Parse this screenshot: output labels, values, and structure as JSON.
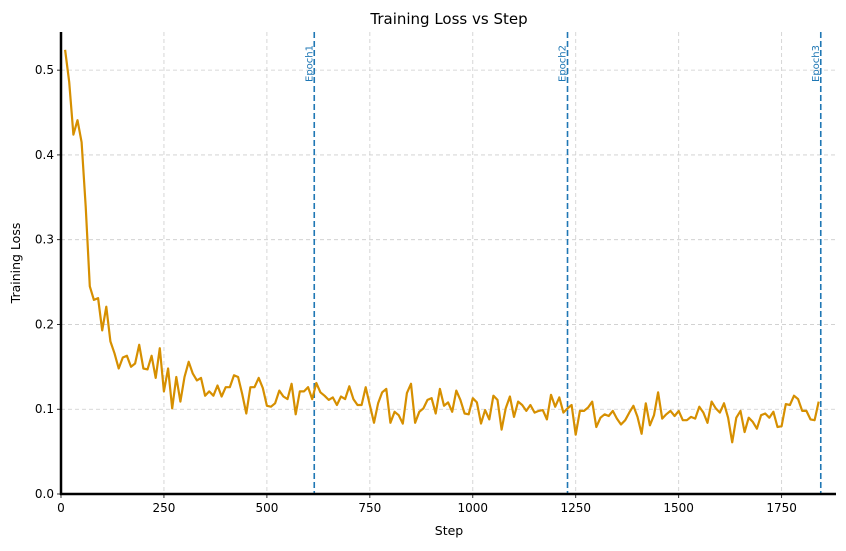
{
  "chart_data": {
    "type": "line",
    "title": "Training Loss vs Step",
    "xlabel": "Step",
    "ylabel": "Training Loss",
    "xlim": [
      0,
      1882
    ],
    "ylim": [
      0,
      0.545
    ],
    "xticks": [
      0,
      250,
      500,
      750,
      1000,
      1250,
      1500,
      1750
    ],
    "yticks": [
      0.0,
      0.1,
      0.2,
      0.3,
      0.4,
      0.5
    ],
    "xtick_labels": [
      "0",
      "250",
      "500",
      "750",
      "1000",
      "1250",
      "1500",
      "1750"
    ],
    "ytick_labels": [
      "0.0",
      "0.1",
      "0.2",
      "0.3",
      "0.4",
      "0.5"
    ],
    "grid": true,
    "line_color": "#d68f00",
    "epoch_color": "#1f77b4",
    "epochs": [
      {
        "label": "Epoch1",
        "step": 615
      },
      {
        "label": "Epoch2",
        "step": 1230
      },
      {
        "label": "Epoch3",
        "step": 1845
      }
    ],
    "x_start": 10,
    "x_step": 10,
    "values": [
      0.524,
      0.486,
      0.424,
      0.441,
      0.415,
      0.339,
      0.245,
      0.229,
      0.231,
      0.193,
      0.221,
      0.18,
      0.166,
      0.148,
      0.161,
      0.163,
      0.15,
      0.154,
      0.176,
      0.148,
      0.147,
      0.163,
      0.137,
      0.172,
      0.121,
      0.148,
      0.101,
      0.138,
      0.109,
      0.138,
      0.156,
      0.142,
      0.134,
      0.137,
      0.116,
      0.121,
      0.116,
      0.128,
      0.115,
      0.126,
      0.126,
      0.14,
      0.138,
      0.118,
      0.095,
      0.126,
      0.126,
      0.137,
      0.125,
      0.104,
      0.103,
      0.107,
      0.122,
      0.115,
      0.112,
      0.13,
      0.094,
      0.121,
      0.121,
      0.126,
      0.112,
      0.131,
      0.12,
      0.116,
      0.111,
      0.114,
      0.105,
      0.115,
      0.112,
      0.127,
      0.112,
      0.105,
      0.105,
      0.126,
      0.105,
      0.084,
      0.107,
      0.12,
      0.124,
      0.084,
      0.097,
      0.093,
      0.083,
      0.119,
      0.13,
      0.084,
      0.097,
      0.101,
      0.111,
      0.113,
      0.095,
      0.124,
      0.104,
      0.108,
      0.097,
      0.122,
      0.111,
      0.095,
      0.094,
      0.113,
      0.108,
      0.083,
      0.099,
      0.088,
      0.116,
      0.111,
      0.076,
      0.101,
      0.115,
      0.091,
      0.109,
      0.105,
      0.098,
      0.105,
      0.096,
      0.098,
      0.099,
      0.088,
      0.117,
      0.103,
      0.114,
      0.096,
      0.101,
      0.105,
      0.07,
      0.098,
      0.098,
      0.102,
      0.109,
      0.079,
      0.09,
      0.094,
      0.092,
      0.098,
      0.089,
      0.082,
      0.087,
      0.096,
      0.104,
      0.091,
      0.071,
      0.107,
      0.081,
      0.093,
      0.12,
      0.089,
      0.094,
      0.098,
      0.092,
      0.098,
      0.087,
      0.087,
      0.091,
      0.089,
      0.103,
      0.096,
      0.084,
      0.109,
      0.101,
      0.096,
      0.107,
      0.09,
      0.061,
      0.09,
      0.098,
      0.073,
      0.09,
      0.085,
      0.077,
      0.093,
      0.095,
      0.09,
      0.097,
      0.079,
      0.08,
      0.106,
      0.105,
      0.116,
      0.112,
      0.098,
      0.098,
      0.088,
      0.087,
      0.109
    ]
  }
}
